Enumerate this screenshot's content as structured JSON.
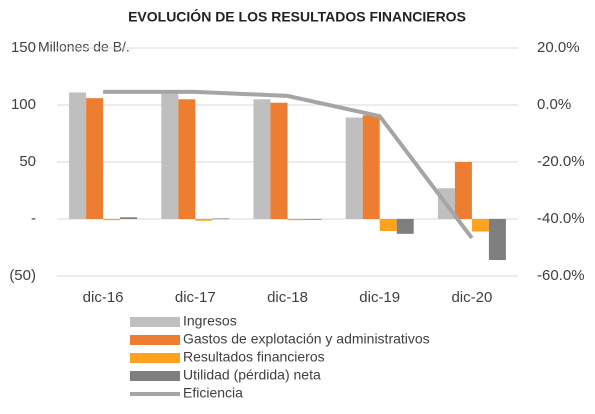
{
  "chart_data": {
    "type": "bar",
    "title": "EVOLUCIÓN DE LOS RESULTADOS FINANCIEROS",
    "y_label": "Millones de B/.",
    "categories": [
      "dic-16",
      "dic-17",
      "dic-18",
      "dic-19",
      "dic-20"
    ],
    "series": [
      {
        "name": "Ingresos",
        "color": "#bfbfbf",
        "values": [
          111,
          110,
          105,
          89,
          27
        ]
      },
      {
        "name": "Gastos de explotación y administrativos",
        "color": "#ed7d31",
        "values": [
          106,
          105,
          102,
          91,
          50
        ]
      },
      {
        "name": "Resultados financieros",
        "color": "#ffa21f",
        "values": [
          -1,
          -1.5,
          -1,
          -10.5,
          -11
        ]
      },
      {
        "name": "Utilidad (pérdida) neta",
        "color": "#7f7f7f",
        "values": [
          1.5,
          0.5,
          0,
          -13,
          -36
        ]
      },
      {
        "name": "Eficiencia",
        "color": "#a5a5a5",
        "type": "line",
        "axis": "y2",
        "values": [
          4.6,
          4.6,
          3.2,
          -3.9,
          -46.7
        ]
      }
    ],
    "ylim": [
      -50,
      150
    ],
    "yticks": [
      {
        "value": -50,
        "label": "(50)"
      },
      {
        "value": 0,
        "label": "-"
      },
      50,
      100,
      150
    ],
    "y2lim": [
      -60,
      20
    ],
    "y2ticks": [
      {
        "value": -60,
        "label": "-60.0%"
      },
      {
        "value": -40,
        "label": "-40.0%"
      },
      {
        "value": -20,
        "label": "-20.0%"
      },
      {
        "value": 0,
        "label": "0.0%"
      },
      {
        "value": 20,
        "label": "20.0%"
      }
    ],
    "grid": true,
    "legend": "bottom"
  }
}
